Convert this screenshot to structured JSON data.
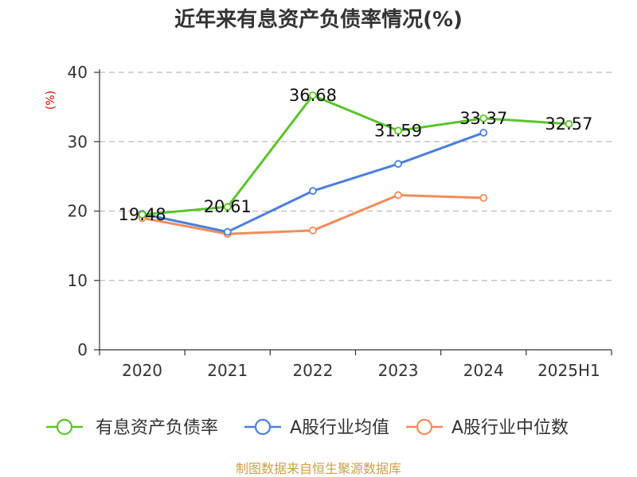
{
  "chart_data": {
    "type": "line",
    "title": "近年来有息资产负债率情况(%)",
    "ylabel": "(%)",
    "categories": [
      "2020",
      "2021",
      "2022",
      "2023",
      "2024",
      "2025H1"
    ],
    "ylim": [
      0,
      40
    ],
    "yticks": [
      "0",
      "10",
      "20",
      "30",
      "40"
    ],
    "grid": true,
    "legend_position": "bottom",
    "series": [
      {
        "name": "有息资产负债率",
        "color": "#5cc42a",
        "values": [
          19.48,
          20.61,
          36.68,
          31.59,
          33.37,
          32.57
        ],
        "labels": [
          "19.48",
          "20.61",
          "36.68",
          "31.59",
          "33.37",
          "32.57"
        ]
      },
      {
        "name": "A股行业均值",
        "color": "#4a7fdb",
        "values": [
          19.6,
          17.0,
          22.9,
          26.8,
          31.3,
          null
        ]
      },
      {
        "name": "A股行业中位数",
        "color": "#f28c5a",
        "values": [
          19.0,
          16.7,
          17.2,
          22.3,
          21.9,
          null
        ]
      }
    ],
    "source": "制图数据来自恒生聚源数据库"
  }
}
